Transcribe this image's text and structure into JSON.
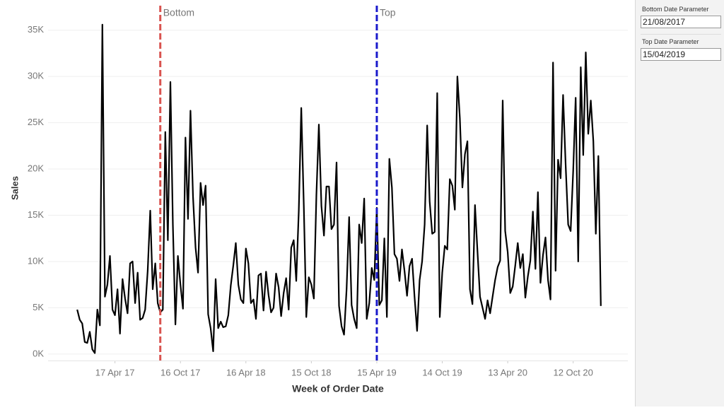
{
  "chart_data": {
    "type": "line",
    "y_label": "Sales",
    "x_label": "Week of Order Date",
    "series": [
      {
        "name": "Sales",
        "color": "#000000",
        "values": [
          4800,
          3700,
          3300,
          1300,
          1200,
          2400,
          500,
          100,
          4800,
          3100,
          35600,
          6200,
          7500,
          10600,
          4800,
          4200,
          7000,
          2200,
          8100,
          6000,
          4400,
          9800,
          10000,
          5500,
          8800,
          3700,
          3900,
          4800,
          9000,
          15500,
          7000,
          9800,
          5500,
          4500,
          4800,
          24000,
          12300,
          29400,
          14000,
          3200,
          10600,
          7500,
          4900,
          23400,
          14600,
          26300,
          17000,
          11500,
          8800,
          18500,
          16100,
          18200,
          4300,
          2800,
          300,
          8100,
          2800,
          3500,
          2900,
          3000,
          4200,
          7400,
          9600,
          12000,
          7500,
          5900,
          5500,
          11400,
          9800,
          5500,
          5900,
          3800,
          8500,
          8700,
          4700,
          8900,
          6400,
          4500,
          5000,
          8700,
          7200,
          4100,
          6600,
          8200,
          4800,
          11500,
          12300,
          7900,
          15500,
          26600,
          16000,
          4000,
          8300,
          7500,
          6000,
          17200,
          24800,
          16000,
          12800,
          18100,
          18100,
          13500,
          14000,
          20700,
          5200,
          3000,
          2100,
          7000,
          14800,
          5300,
          3800,
          2800,
          14000,
          12000,
          16800,
          3800,
          5500,
          9300,
          8000,
          15800,
          5300,
          5800,
          12500,
          4000,
          21100,
          18000,
          10800,
          10300,
          7900,
          11300,
          9000,
          6300,
          9500,
          10300,
          6200,
          2500,
          8000,
          10000,
          14000,
          24700,
          16500,
          13000,
          13200,
          28200,
          4000,
          8800,
          11700,
          11300,
          18900,
          18200,
          15600,
          30000,
          25500,
          18000,
          21600,
          23000,
          7000,
          5400,
          16100,
          11000,
          6200,
          5000,
          3800,
          5800,
          4400,
          6200,
          8000,
          9400,
          10100,
          27400,
          13300,
          11000,
          6600,
          7300,
          9600,
          12000,
          9300,
          10800,
          6100,
          8400,
          10100,
          15400,
          9200,
          17500,
          7700,
          10700,
          12600,
          8000,
          5900,
          31500,
          9000,
          21000,
          19000,
          28000,
          20500,
          14000,
          13300,
          19800,
          27700,
          10000,
          31000,
          21500,
          32600,
          23800,
          27400,
          23000,
          13000,
          21400,
          5200
        ]
      }
    ],
    "x": [
      "2017-01-02",
      "2017-01-09",
      "2017-01-16",
      "2017-01-23",
      "2017-01-30",
      "2017-02-06",
      "2017-02-13",
      "2017-02-20",
      "2017-02-27",
      "2017-03-06",
      "2017-03-13",
      "2017-03-20",
      "2017-03-27",
      "2017-04-03",
      "2017-04-10",
      "2017-04-17",
      "2017-04-24",
      "2017-05-01",
      "2017-05-08",
      "2017-05-15",
      "2017-05-22",
      "2017-05-29",
      "2017-06-05",
      "2017-06-12",
      "2017-06-19",
      "2017-06-26",
      "2017-07-03",
      "2017-07-10",
      "2017-07-17",
      "2017-07-24",
      "2017-07-31",
      "2017-08-07",
      "2017-08-14",
      "2017-08-21",
      "2017-08-28",
      "2017-09-04",
      "2017-09-11",
      "2017-09-18",
      "2017-09-25",
      "2017-10-02",
      "2017-10-09",
      "2017-10-16",
      "2017-10-23",
      "2017-10-30",
      "2017-11-06",
      "2017-11-13",
      "2017-11-20",
      "2017-11-27",
      "2017-12-04",
      "2017-12-11",
      "2017-12-18",
      "2017-12-25",
      "2018-01-01",
      "2018-01-08",
      "2018-01-15",
      "2018-01-22",
      "2018-01-29",
      "2018-02-05",
      "2018-02-12",
      "2018-02-19",
      "2018-02-26",
      "2018-03-05",
      "2018-03-12",
      "2018-03-19",
      "2018-03-26",
      "2018-04-02",
      "2018-04-09",
      "2018-04-16",
      "2018-04-23",
      "2018-04-30",
      "2018-05-07",
      "2018-05-14",
      "2018-05-21",
      "2018-05-28",
      "2018-06-04",
      "2018-06-11",
      "2018-06-18",
      "2018-06-25",
      "2018-07-02",
      "2018-07-09",
      "2018-07-16",
      "2018-07-23",
      "2018-07-30",
      "2018-08-06",
      "2018-08-13",
      "2018-08-20",
      "2018-08-27",
      "2018-09-03",
      "2018-09-10",
      "2018-09-17",
      "2018-09-24",
      "2018-10-01",
      "2018-10-08",
      "2018-10-15",
      "2018-10-22",
      "2018-10-29",
      "2018-11-05",
      "2018-11-12",
      "2018-11-19",
      "2018-11-26",
      "2018-12-03",
      "2018-12-10",
      "2018-12-17",
      "2018-12-24",
      "2018-12-31",
      "2019-01-07",
      "2019-01-14",
      "2019-01-21",
      "2019-01-28",
      "2019-02-04",
      "2019-02-11",
      "2019-02-18",
      "2019-02-25",
      "2019-03-04",
      "2019-03-11",
      "2019-03-18",
      "2019-03-25",
      "2019-04-01",
      "2019-04-08",
      "2019-04-15",
      "2019-04-22",
      "2019-04-29",
      "2019-05-06",
      "2019-05-13",
      "2019-05-20",
      "2019-05-27",
      "2019-06-03",
      "2019-06-10",
      "2019-06-17",
      "2019-06-24",
      "2019-07-01",
      "2019-07-08",
      "2019-07-15",
      "2019-07-22",
      "2019-07-29",
      "2019-08-05",
      "2019-08-12",
      "2019-08-19",
      "2019-08-26",
      "2019-09-02",
      "2019-09-09",
      "2019-09-16",
      "2019-09-23",
      "2019-09-30",
      "2019-10-07",
      "2019-10-14",
      "2019-10-21",
      "2019-10-28",
      "2019-11-04",
      "2019-11-11",
      "2019-11-18",
      "2019-11-25",
      "2019-12-02",
      "2019-12-09",
      "2019-12-16",
      "2019-12-23",
      "2019-12-30",
      "2020-01-06",
      "2020-01-13",
      "2020-01-20",
      "2020-01-27",
      "2020-02-03",
      "2020-02-10",
      "2020-02-17",
      "2020-02-24",
      "2020-03-02",
      "2020-03-09",
      "2020-03-16",
      "2020-03-23",
      "2020-03-30",
      "2020-04-06",
      "2020-04-13",
      "2020-04-20",
      "2020-04-27",
      "2020-05-04",
      "2020-05-11",
      "2020-05-18",
      "2020-05-25",
      "2020-06-01",
      "2020-06-08",
      "2020-06-15",
      "2020-06-22",
      "2020-06-29",
      "2020-07-06",
      "2020-07-13",
      "2020-07-20",
      "2020-07-27",
      "2020-08-03",
      "2020-08-10",
      "2020-08-17",
      "2020-08-24",
      "2020-08-31",
      "2020-09-07",
      "2020-09-14",
      "2020-09-21",
      "2020-09-28",
      "2020-10-05",
      "2020-10-12",
      "2020-10-19",
      "2020-10-26",
      "2020-11-02",
      "2020-11-09",
      "2020-11-16",
      "2020-11-23",
      "2020-11-30",
      "2020-12-07",
      "2020-12-14",
      "2020-12-21",
      "2020-12-28"
    ],
    "xlim": [
      "2016-10-13",
      "2021-03-13"
    ],
    "xticks": [
      {
        "value": "2017-04-17",
        "label": "17 Apr 17"
      },
      {
        "value": "2017-10-16",
        "label": "16 Oct 17"
      },
      {
        "value": "2018-04-16",
        "label": "16 Apr 18"
      },
      {
        "value": "2018-10-15",
        "label": "15 Oct 18"
      },
      {
        "value": "2019-04-15",
        "label": "15 Apr 19"
      },
      {
        "value": "2019-10-14",
        "label": "14 Oct 19"
      },
      {
        "value": "2020-04-13",
        "label": "13 Apr 20"
      },
      {
        "value": "2020-10-12",
        "label": "12 Oct 20"
      }
    ],
    "ylim": [
      -700,
      37500
    ],
    "yticks": [
      {
        "value": 0,
        "label": "0K"
      },
      {
        "value": 5000,
        "label": "5K"
      },
      {
        "value": 10000,
        "label": "10K"
      },
      {
        "value": 15000,
        "label": "15K"
      },
      {
        "value": 20000,
        "label": "20K"
      },
      {
        "value": 25000,
        "label": "25K"
      },
      {
        "value": 30000,
        "label": "30K"
      },
      {
        "value": 35000,
        "label": "35K"
      }
    ],
    "grid": true,
    "reference_lines": [
      {
        "label": "Bottom",
        "color": "#d9534f",
        "parameter": 0
      },
      {
        "label": "Top",
        "color": "#1a1acc",
        "parameter": 1
      }
    ]
  },
  "parameters": [
    {
      "label": "Bottom Date Parameter",
      "value": "21/08/2017"
    },
    {
      "label": "Top Date Parameter",
      "value": "15/04/2019"
    }
  ]
}
